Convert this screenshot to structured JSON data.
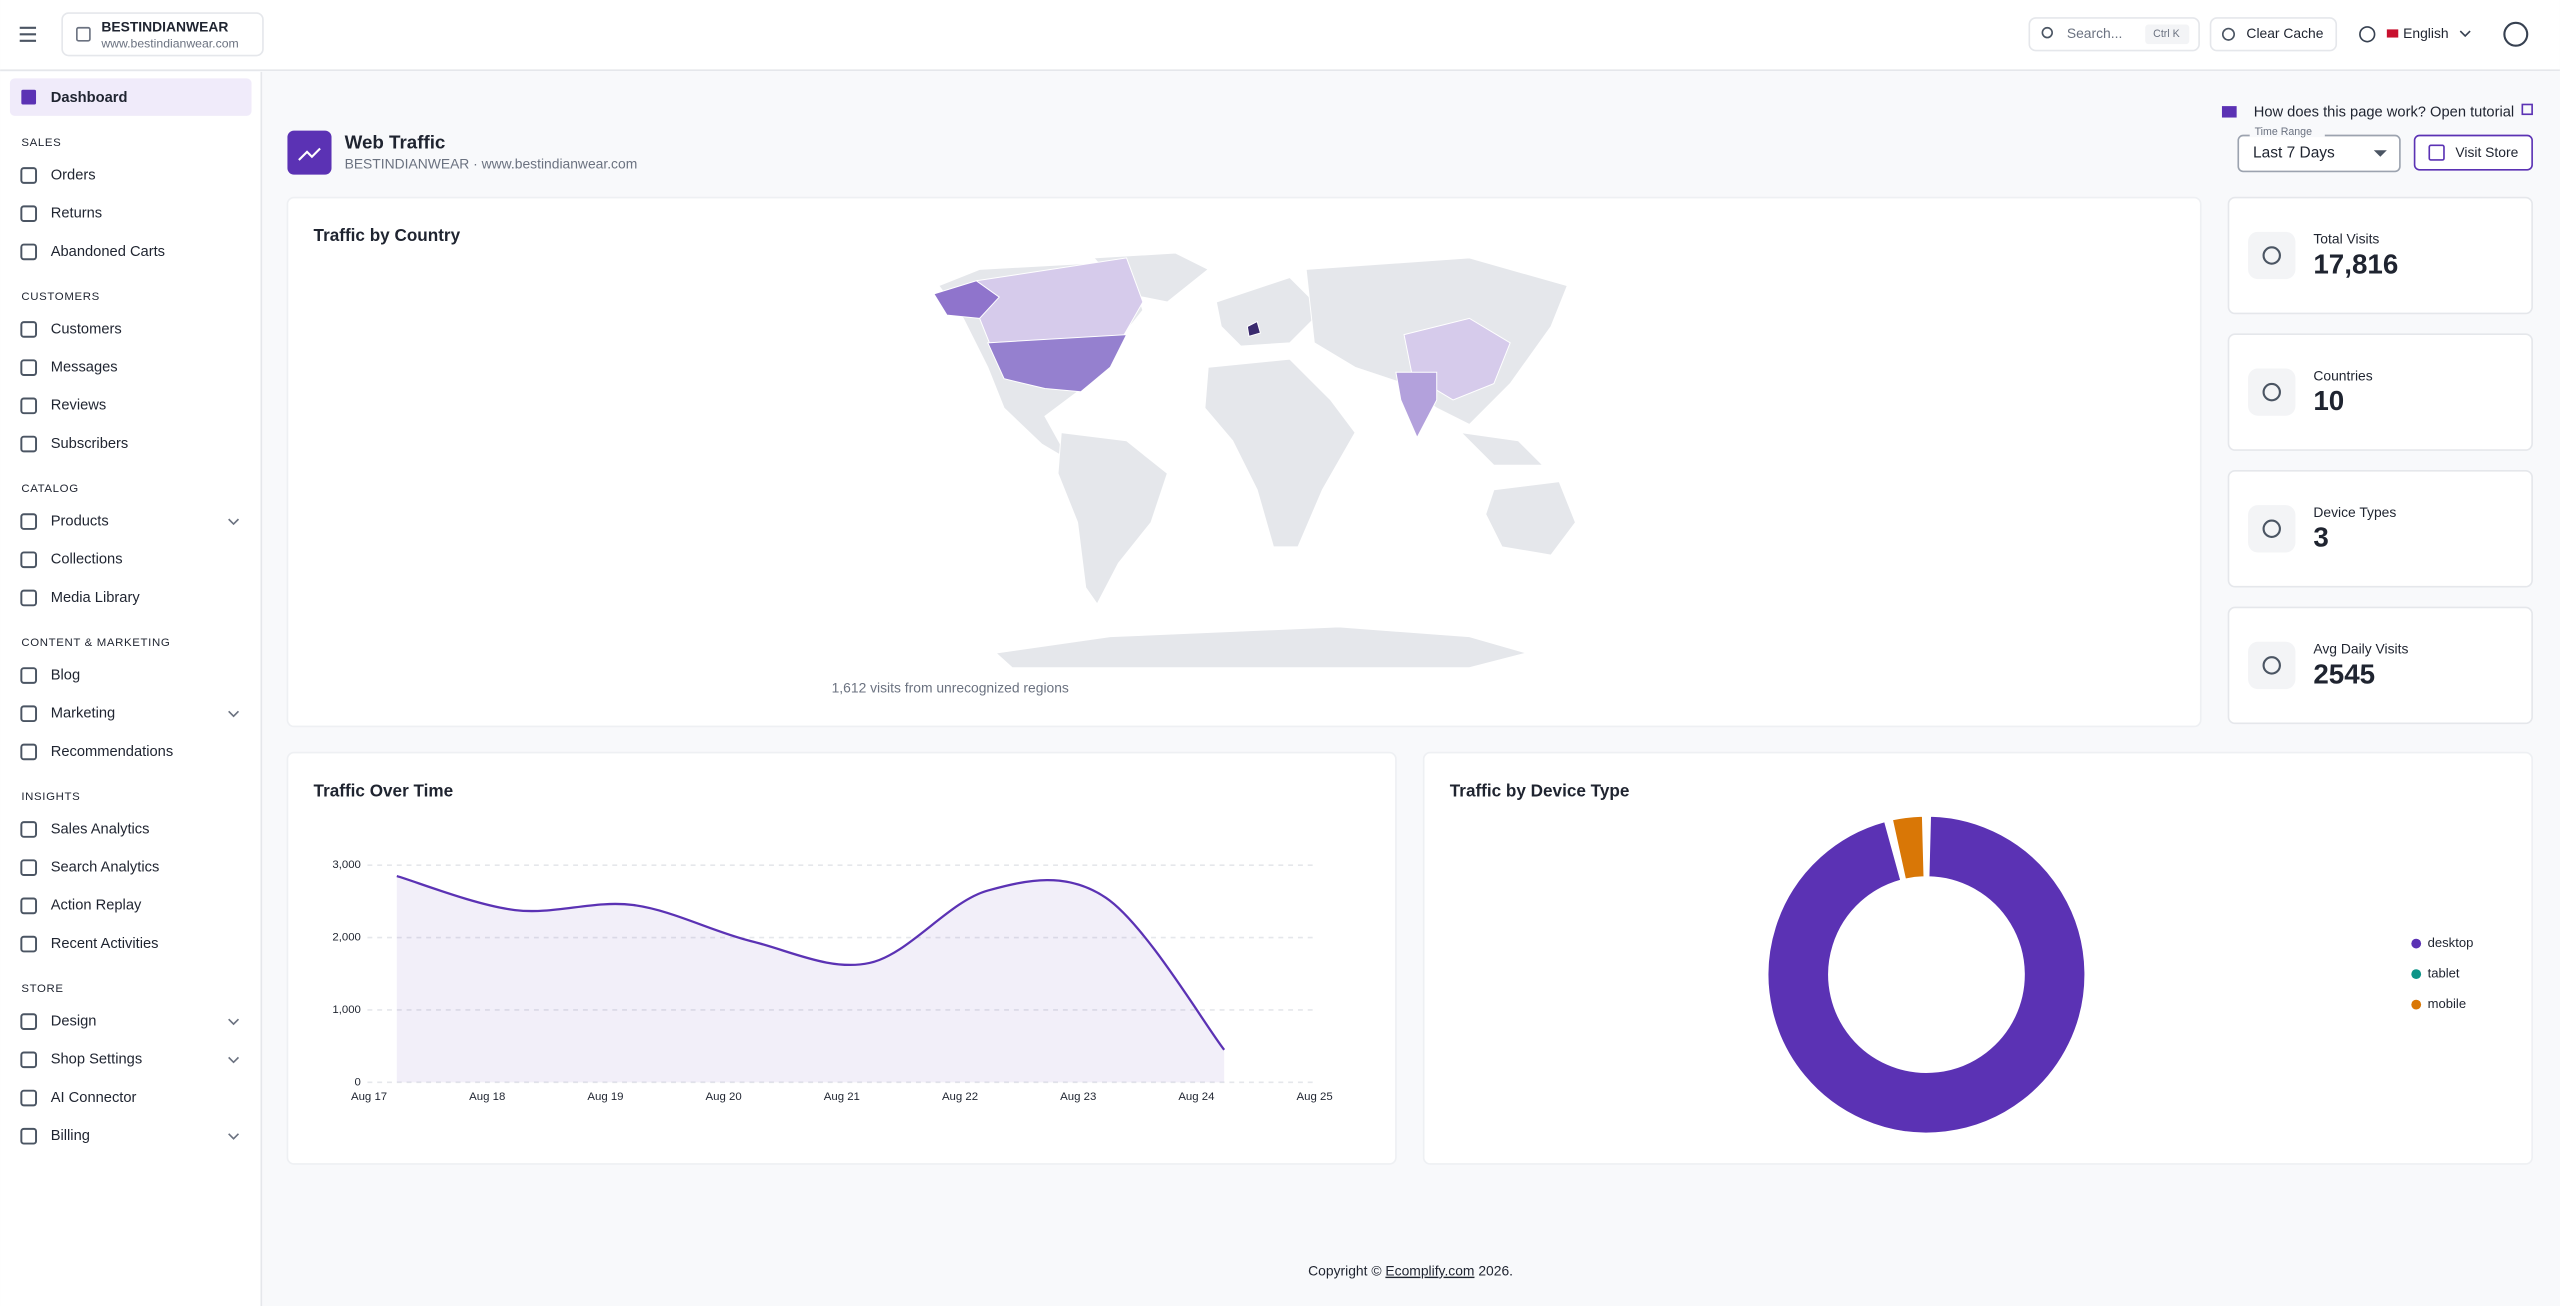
{
  "header": {
    "brand": "BESTINDIANWEAR",
    "url": "www.bestindianwear.com",
    "search": "Search...",
    "shortcut": "Ctrl K",
    "clear_cache": "Clear Cache",
    "language": "English"
  },
  "sidebar": {
    "active": "Dashboard",
    "sections": [
      {
        "title": "SALES",
        "items": [
          {
            "label": "Orders"
          },
          {
            "label": "Returns"
          },
          {
            "label": "Abandoned Carts"
          }
        ]
      },
      {
        "title": "CUSTOMERS",
        "items": [
          {
            "label": "Customers"
          },
          {
            "label": "Messages"
          },
          {
            "label": "Reviews"
          },
          {
            "label": "Subscribers"
          }
        ]
      },
      {
        "title": "CATALOG",
        "items": [
          {
            "label": "Products",
            "expandable": true
          },
          {
            "label": "Collections"
          },
          {
            "label": "Media Library"
          }
        ]
      },
      {
        "title": "CONTENT & MARKETING",
        "items": [
          {
            "label": "Blog"
          },
          {
            "label": "Marketing",
            "expandable": true
          },
          {
            "label": "Recommendations"
          }
        ]
      },
      {
        "title": "INSIGHTS",
        "items": [
          {
            "label": "Sales Analytics"
          },
          {
            "label": "Search Analytics"
          },
          {
            "label": "Action Replay"
          },
          {
            "label": "Recent Activities"
          }
        ]
      },
      {
        "title": "STORE",
        "items": [
          {
            "label": "Design",
            "expandable": true
          },
          {
            "label": "Shop Settings",
            "expandable": true
          },
          {
            "label": "AI Connector"
          },
          {
            "label": "Billing",
            "expandable": true
          }
        ]
      }
    ]
  },
  "page": {
    "title": "Web Traffic",
    "subtitle": "BESTINDIANWEAR · www.bestindianwear.com",
    "tutorial": "How does this page work? Open tutorial",
    "time_range_label": "Time Range",
    "time_range": "Last 7 Days",
    "visit_store": "Visit Store"
  },
  "map": {
    "title": "Traffic by Country",
    "note": "1,612 visits from unrecognized regions"
  },
  "stats": [
    {
      "label": "Total Visits",
      "value": "17,816"
    },
    {
      "label": "Countries",
      "value": "10"
    },
    {
      "label": "Device Types",
      "value": "3"
    },
    {
      "label": "Avg Daily Visits",
      "value": "2545"
    }
  ],
  "chart_data": [
    {
      "type": "area",
      "title": "Traffic Over Time",
      "categories": [
        "Aug 17",
        "Aug 18",
        "Aug 19",
        "Aug 20",
        "Aug 21",
        "Aug 22",
        "Aug 23",
        "Aug 24",
        "Aug 25"
      ],
      "values": [
        2850,
        2380,
        2450,
        1950,
        1650,
        2650,
        2550,
        450,
        null
      ],
      "color": "#5b32b4",
      "ylim": [
        0,
        3000
      ],
      "yticks": [
        0,
        {
          "value": 1000,
          "label": "1,000"
        },
        {
          "value": 2000,
          "label": "2,000"
        },
        {
          "value": 3000,
          "label": "3,000"
        }
      ],
      "grid": true
    },
    {
      "type": "donut",
      "title": "Traffic by Device Type",
      "categories": [
        "desktop",
        "tablet",
        "mobile"
      ],
      "values": [
        95,
        0,
        3
      ],
      "colors": [
        "#5b32b4",
        "#0d9488",
        "#d97706"
      ],
      "legend": "right"
    }
  ],
  "footer": {
    "prefix": "Copyright ©",
    "link": "Ecomplify.com",
    "suffix": "2026."
  }
}
